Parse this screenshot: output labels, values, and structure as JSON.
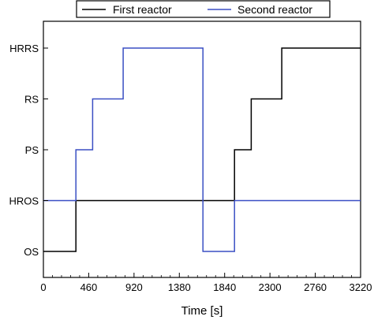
{
  "chart_data": {
    "type": "line",
    "title": "",
    "xlabel": "Time [s]",
    "ylabel": "",
    "xlim": [
      0,
      3220
    ],
    "x_ticks": [
      0,
      460,
      920,
      1380,
      1840,
      2300,
      2760,
      3220
    ],
    "x_tick_labels": [
      "0",
      "460",
      "920",
      "1380",
      "1840",
      "2300",
      "2760",
      "3220"
    ],
    "y_categories": [
      "OS",
      "HROS",
      "PS",
      "RS",
      "HRRS"
    ],
    "y_values": [
      0,
      1,
      2,
      3,
      4
    ],
    "grid": false,
    "legend_position": "top",
    "series": [
      {
        "name": "First reactor",
        "color": "#000000",
        "step": true,
        "points": [
          [
            0,
            0
          ],
          [
            330,
            0
          ],
          [
            330,
            1
          ],
          [
            1940,
            1
          ],
          [
            1940,
            2
          ],
          [
            2110,
            2
          ],
          [
            2110,
            3
          ],
          [
            2420,
            3
          ],
          [
            2420,
            4
          ],
          [
            3220,
            4
          ]
        ]
      },
      {
        "name": "Second reactor",
        "color": "#3a4fc4",
        "step": true,
        "points": [
          [
            0,
            1
          ],
          [
            330,
            1
          ],
          [
            330,
            2
          ],
          [
            500,
            2
          ],
          [
            500,
            3
          ],
          [
            810,
            3
          ],
          [
            810,
            4
          ],
          [
            1620,
            4
          ],
          [
            1620,
            0
          ],
          [
            1940,
            0
          ],
          [
            1940,
            1
          ],
          [
            3220,
            1
          ]
        ]
      }
    ]
  }
}
